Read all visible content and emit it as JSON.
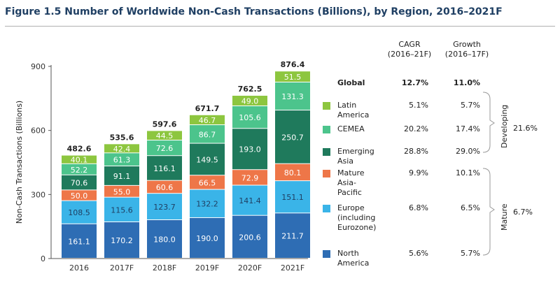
{
  "title": "Figure 1.5 Number of Worldwide Non-Cash Transactions (Billions), by Region, 2016–2021F",
  "table": {
    "header_cagr": [
      "CAGR",
      "(2016–21F)"
    ],
    "header_growth": [
      "Growth",
      "(2016–17F)"
    ],
    "global": {
      "label": "Global",
      "cagr": "12.7%",
      "growth": "11.0%"
    },
    "rows": [
      {
        "label": [
          "Latin America"
        ],
        "cagr": "5.1%",
        "growth": "5.7%",
        "color": "#8dc63f"
      },
      {
        "label": [
          "CEMEA"
        ],
        "cagr": "20.2%",
        "growth": "17.4%",
        "color": "#4cc48c"
      },
      {
        "label": [
          "Emerging Asia"
        ],
        "cagr": "28.8%",
        "growth": "29.0%",
        "color": "#1f7a5c"
      },
      {
        "label": [
          "Mature",
          "Asia-Pacific"
        ],
        "cagr": "9.9%",
        "growth": "10.1%",
        "color": "#ee7648"
      },
      {
        "label": [
          "Europe",
          "(including",
          "Eurozone)"
        ],
        "cagr": "6.8%",
        "growth": "6.5%",
        "color": "#3ab4e8"
      },
      {
        "label": [
          "North America"
        ],
        "cagr": "5.6%",
        "growth": "5.7%",
        "color": "#2e6db4"
      }
    ],
    "groups": [
      {
        "label": "Developing",
        "value": "21.6%"
      },
      {
        "label": "Mature",
        "value": "6.7%"
      }
    ]
  },
  "chart_data": {
    "type": "bar",
    "stacked": true,
    "title": "Figure 1.5 Number of Worldwide Non-Cash Transactions (Billions), by Region, 2016–2021F",
    "xlabel": "",
    "ylabel": "Non-Cash Transactions (Billions)",
    "ylim": [
      0,
      900
    ],
    "yticks": [
      0,
      300,
      600,
      900
    ],
    "grid": false,
    "legend": "right",
    "categories": [
      "2016",
      "2017F",
      "2018F",
      "2019F",
      "2020F",
      "2021F"
    ],
    "totals": [
      "482.6",
      "535.6",
      "597.6",
      "671.7",
      "762.5",
      "876.4"
    ],
    "series": [
      {
        "name": "North America",
        "color": "#2e6db4",
        "label_color": "#ffffff",
        "values": [
          161.1,
          170.2,
          180.0,
          190.0,
          200.6,
          211.7
        ]
      },
      {
        "name": "Europe (including Eurozone)",
        "color": "#3ab4e8",
        "label_color": "#1f3f63",
        "values": [
          108.5,
          115.6,
          123.7,
          132.2,
          141.4,
          151.1
        ]
      },
      {
        "name": "Mature Asia-Pacific",
        "color": "#ee7648",
        "label_color": "#ffffff",
        "values": [
          50.0,
          55.0,
          60.6,
          66.5,
          72.9,
          80.1
        ]
      },
      {
        "name": "Emerging Asia",
        "color": "#1f7a5c",
        "label_color": "#ffffff",
        "values": [
          70.6,
          91.1,
          116.1,
          149.5,
          193.0,
          250.7
        ]
      },
      {
        "name": "CEMEA",
        "color": "#4cc48c",
        "label_color": "#ffffff",
        "values": [
          52.2,
          61.3,
          72.6,
          86.7,
          105.6,
          131.3
        ]
      },
      {
        "name": "Latin America",
        "color": "#8dc63f",
        "label_color": "#ffffff",
        "values": [
          40.1,
          42.4,
          44.5,
          46.7,
          49.0,
          51.5
        ]
      }
    ],
    "segment_labels": [
      [
        "161.1",
        "170.2",
        "180.0",
        "190.0",
        "200.6",
        "211.7"
      ],
      [
        "108.5",
        "115.6",
        "123.7",
        "132.2",
        "141.4",
        "151.1"
      ],
      [
        "50.0",
        "55.0",
        "60.6",
        "66.5",
        "72.9",
        "80.1"
      ],
      [
        "70.6",
        "91.1",
        "116.1",
        "149.5",
        "193.0",
        "250.7"
      ],
      [
        "52.2",
        "61.3",
        "72.6",
        "86.7",
        "105.6",
        "131.3"
      ],
      [
        "40.1",
        "42.4",
        "44.5",
        "46.7",
        "49.0",
        "51.5"
      ]
    ],
    "ytick_labels": [
      "0",
      "300",
      "600",
      "900"
    ]
  }
}
